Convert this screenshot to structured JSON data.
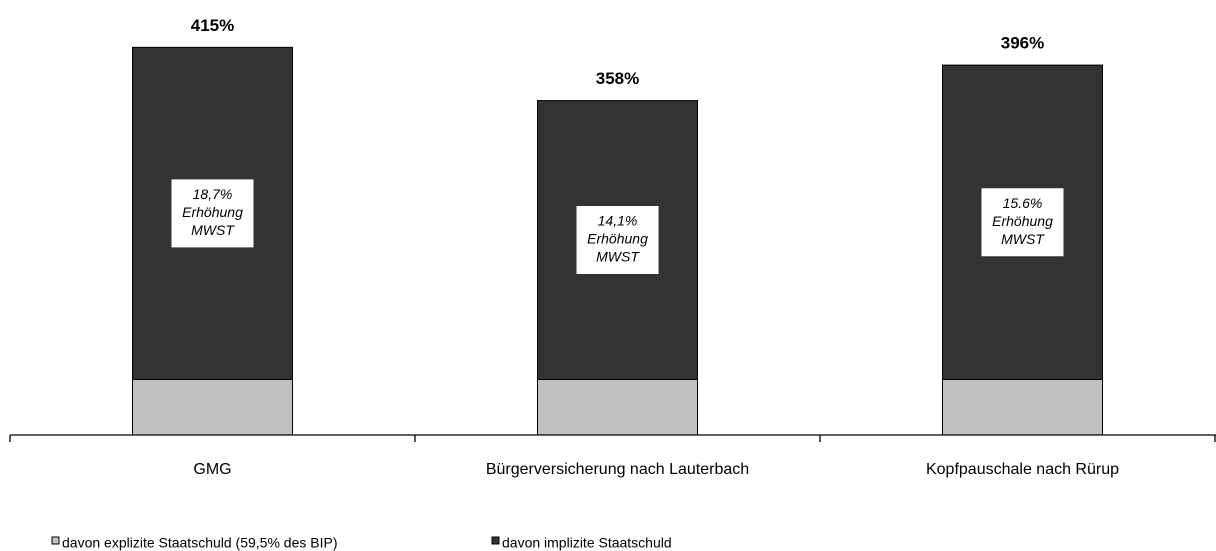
{
  "chart_data": {
    "type": "stacked_bar",
    "categories": [
      "GMG",
      "Bürgerversicherung nach Lauterbach",
      "Kopfpauschale nach Rürup"
    ],
    "series": [
      {
        "name": "davon explizite Staatschuld (59,5% des BIP)",
        "color": "#c0c0c0",
        "values": [
          59.5,
          59.5,
          59.5
        ]
      },
      {
        "name": "davon implizite Staatschuld",
        "color": "#333333",
        "values": [
          355.5,
          298.5,
          336.5
        ]
      }
    ],
    "totals": [
      415,
      358,
      396
    ],
    "total_labels": [
      "415%",
      "358%",
      "396%"
    ],
    "annotations": [
      [
        "18,7%",
        "Erhöhung",
        "MWST"
      ],
      [
        "14,1%",
        "Erhöhung",
        "MWST"
      ],
      [
        "15.6%",
        "Erhöhung",
        "MWST"
      ]
    ],
    "ylim": [
      0,
      440
    ]
  }
}
